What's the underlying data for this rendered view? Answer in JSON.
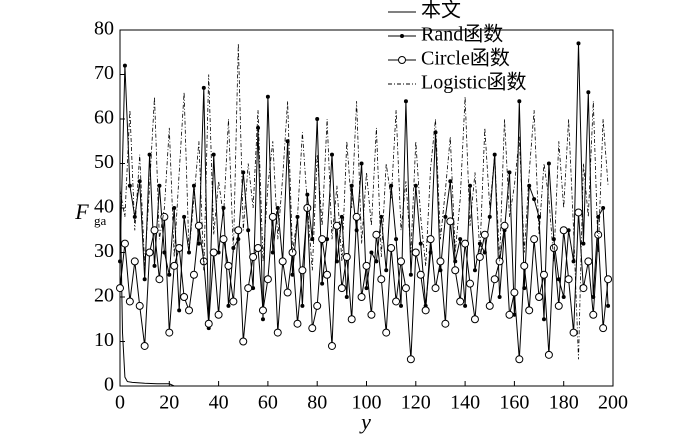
{
  "chart_data": {
    "type": "line",
    "xlabel": "y",
    "ylabel": "F",
    "ylabel_sub": "ga",
    "xlim": [
      0,
      200
    ],
    "ylim": [
      0,
      80
    ],
    "xticks": [
      0,
      20,
      40,
      60,
      80,
      100,
      120,
      140,
      160,
      180,
      200
    ],
    "yticks": [
      0,
      10,
      20,
      30,
      40,
      50,
      60,
      70,
      80
    ],
    "series": [
      {
        "name": "本文",
        "color": "#000000",
        "linestyle": "solid",
        "marker": "none",
        "x": [
          0,
          1,
          2,
          3,
          5,
          10,
          15,
          20,
          22
        ],
        "values": [
          45,
          12,
          2,
          1,
          0.8,
          0.6,
          0.5,
          0.5,
          0
        ]
      },
      {
        "name": "Rand函数",
        "color": "#000000",
        "linestyle": "solid",
        "marker": "dot",
        "x": [
          0,
          2,
          4,
          6,
          8,
          10,
          12,
          14,
          16,
          18,
          20,
          22,
          24,
          26,
          28,
          30,
          32,
          34,
          36,
          38,
          40,
          42,
          44,
          46,
          48,
          50,
          52,
          54,
          56,
          58,
          60,
          62,
          64,
          66,
          68,
          70,
          72,
          74,
          76,
          78,
          80,
          82,
          84,
          86,
          88,
          90,
          92,
          94,
          96,
          98,
          100,
          102,
          104,
          106,
          108,
          110,
          112,
          114,
          116,
          118,
          120,
          122,
          124,
          126,
          128,
          130,
          132,
          134,
          136,
          138,
          140,
          142,
          144,
          146,
          148,
          150,
          152,
          154,
          156,
          158,
          160,
          162,
          164,
          166,
          168,
          170,
          172,
          174,
          176,
          178,
          180,
          182,
          184,
          186,
          188,
          190,
          192,
          194,
          196,
          198
        ],
        "values": [
          28,
          72,
          45,
          38,
          46,
          24,
          52,
          27,
          45,
          30,
          25,
          40,
          17,
          38,
          30,
          45,
          32,
          67,
          13,
          52,
          30,
          40,
          18,
          31,
          33,
          48,
          35,
          22,
          58,
          15,
          65,
          30,
          40,
          28,
          55,
          25,
          38,
          18,
          43,
          33,
          60,
          23,
          33,
          52,
          28,
          38,
          20,
          45,
          35,
          50,
          22,
          30,
          28,
          38,
          26,
          45,
          33,
          18,
          64,
          25,
          45,
          32,
          18,
          30,
          57,
          26,
          38,
          46,
          28,
          33,
          18,
          45,
          26,
          32,
          30,
          38,
          52,
          20,
          35,
          48,
          16,
          64,
          22,
          45,
          42,
          38,
          15,
          50,
          33,
          24,
          20,
          35,
          28,
          77,
          32,
          66,
          20,
          38,
          40,
          18
        ]
      },
      {
        "name": "Circle函数",
        "color": "#000000",
        "linestyle": "solid",
        "marker": "circle",
        "x": [
          0,
          2,
          4,
          6,
          8,
          10,
          12,
          14,
          16,
          18,
          20,
          22,
          24,
          26,
          28,
          30,
          32,
          34,
          36,
          38,
          40,
          42,
          44,
          46,
          48,
          50,
          52,
          54,
          56,
          58,
          60,
          62,
          64,
          66,
          68,
          70,
          72,
          74,
          76,
          78,
          80,
          82,
          84,
          86,
          88,
          90,
          92,
          94,
          96,
          98,
          100,
          102,
          104,
          106,
          108,
          110,
          112,
          114,
          116,
          118,
          120,
          122,
          124,
          126,
          128,
          130,
          132,
          134,
          136,
          138,
          140,
          142,
          144,
          146,
          148,
          150,
          152,
          154,
          156,
          158,
          160,
          162,
          164,
          166,
          168,
          170,
          172,
          174,
          176,
          178,
          180,
          182,
          184,
          186,
          188,
          190,
          192,
          194,
          196,
          198
        ],
        "values": [
          22,
          32,
          19,
          28,
          18,
          9,
          30,
          35,
          24,
          38,
          12,
          27,
          31,
          20,
          17,
          25,
          36,
          28,
          14,
          30,
          16,
          33,
          27,
          19,
          35,
          10,
          22,
          29,
          31,
          17,
          24,
          38,
          12,
          28,
          21,
          30,
          14,
          26,
          40,
          13,
          18,
          33,
          25,
          9,
          36,
          22,
          29,
          15,
          38,
          20,
          27,
          16,
          34,
          24,
          12,
          31,
          19,
          28,
          22,
          6,
          30,
          25,
          17,
          33,
          22,
          28,
          14,
          37,
          26,
          19,
          32,
          23,
          15,
          29,
          34,
          18,
          24,
          28,
          36,
          16,
          21,
          6,
          27,
          17,
          33,
          20,
          25,
          7,
          31,
          18,
          35,
          24,
          12,
          39,
          22,
          28,
          16,
          34,
          13,
          24
        ]
      },
      {
        "name": "Logistic函数",
        "color": "#000000",
        "linestyle": "dashdot",
        "marker": "none",
        "x": [
          0,
          2,
          4,
          6,
          8,
          10,
          12,
          14,
          16,
          18,
          20,
          22,
          24,
          26,
          28,
          30,
          32,
          34,
          36,
          38,
          40,
          42,
          44,
          46,
          48,
          50,
          52,
          54,
          56,
          58,
          60,
          62,
          64,
          66,
          68,
          70,
          72,
          74,
          76,
          78,
          80,
          82,
          84,
          86,
          88,
          90,
          92,
          94,
          96,
          98,
          100,
          102,
          104,
          106,
          108,
          110,
          112,
          114,
          116,
          118,
          120,
          122,
          124,
          126,
          128,
          130,
          132,
          134,
          136,
          138,
          140,
          142,
          144,
          146,
          148,
          150,
          152,
          154,
          156,
          158,
          160,
          162,
          164,
          166,
          168,
          170,
          172,
          174,
          176,
          178,
          180,
          182,
          184,
          186,
          188,
          190,
          192,
          194,
          196,
          198
        ],
        "values": [
          44,
          38,
          62,
          35,
          52,
          27,
          45,
          65,
          33,
          40,
          58,
          29,
          48,
          66,
          30,
          42,
          55,
          26,
          70,
          34,
          46,
          38,
          60,
          30,
          77,
          35,
          50,
          40,
          62,
          28,
          45,
          55,
          33,
          47,
          64,
          30,
          38,
          57,
          41,
          26,
          52,
          36,
          60,
          33,
          45,
          28,
          55,
          40,
          64,
          32,
          48,
          36,
          58,
          29,
          50,
          42,
          62,
          35,
          46,
          30,
          55,
          38,
          27,
          49,
          60,
          33,
          44,
          56,
          30,
          42,
          65,
          36,
          48,
          30,
          58,
          40,
          52,
          28,
          60,
          38,
          45,
          56,
          30,
          48,
          62,
          34,
          50,
          42,
          28,
          55,
          40,
          60,
          35,
          6,
          50,
          38,
          64,
          30,
          60,
          45
        ]
      }
    ]
  }
}
